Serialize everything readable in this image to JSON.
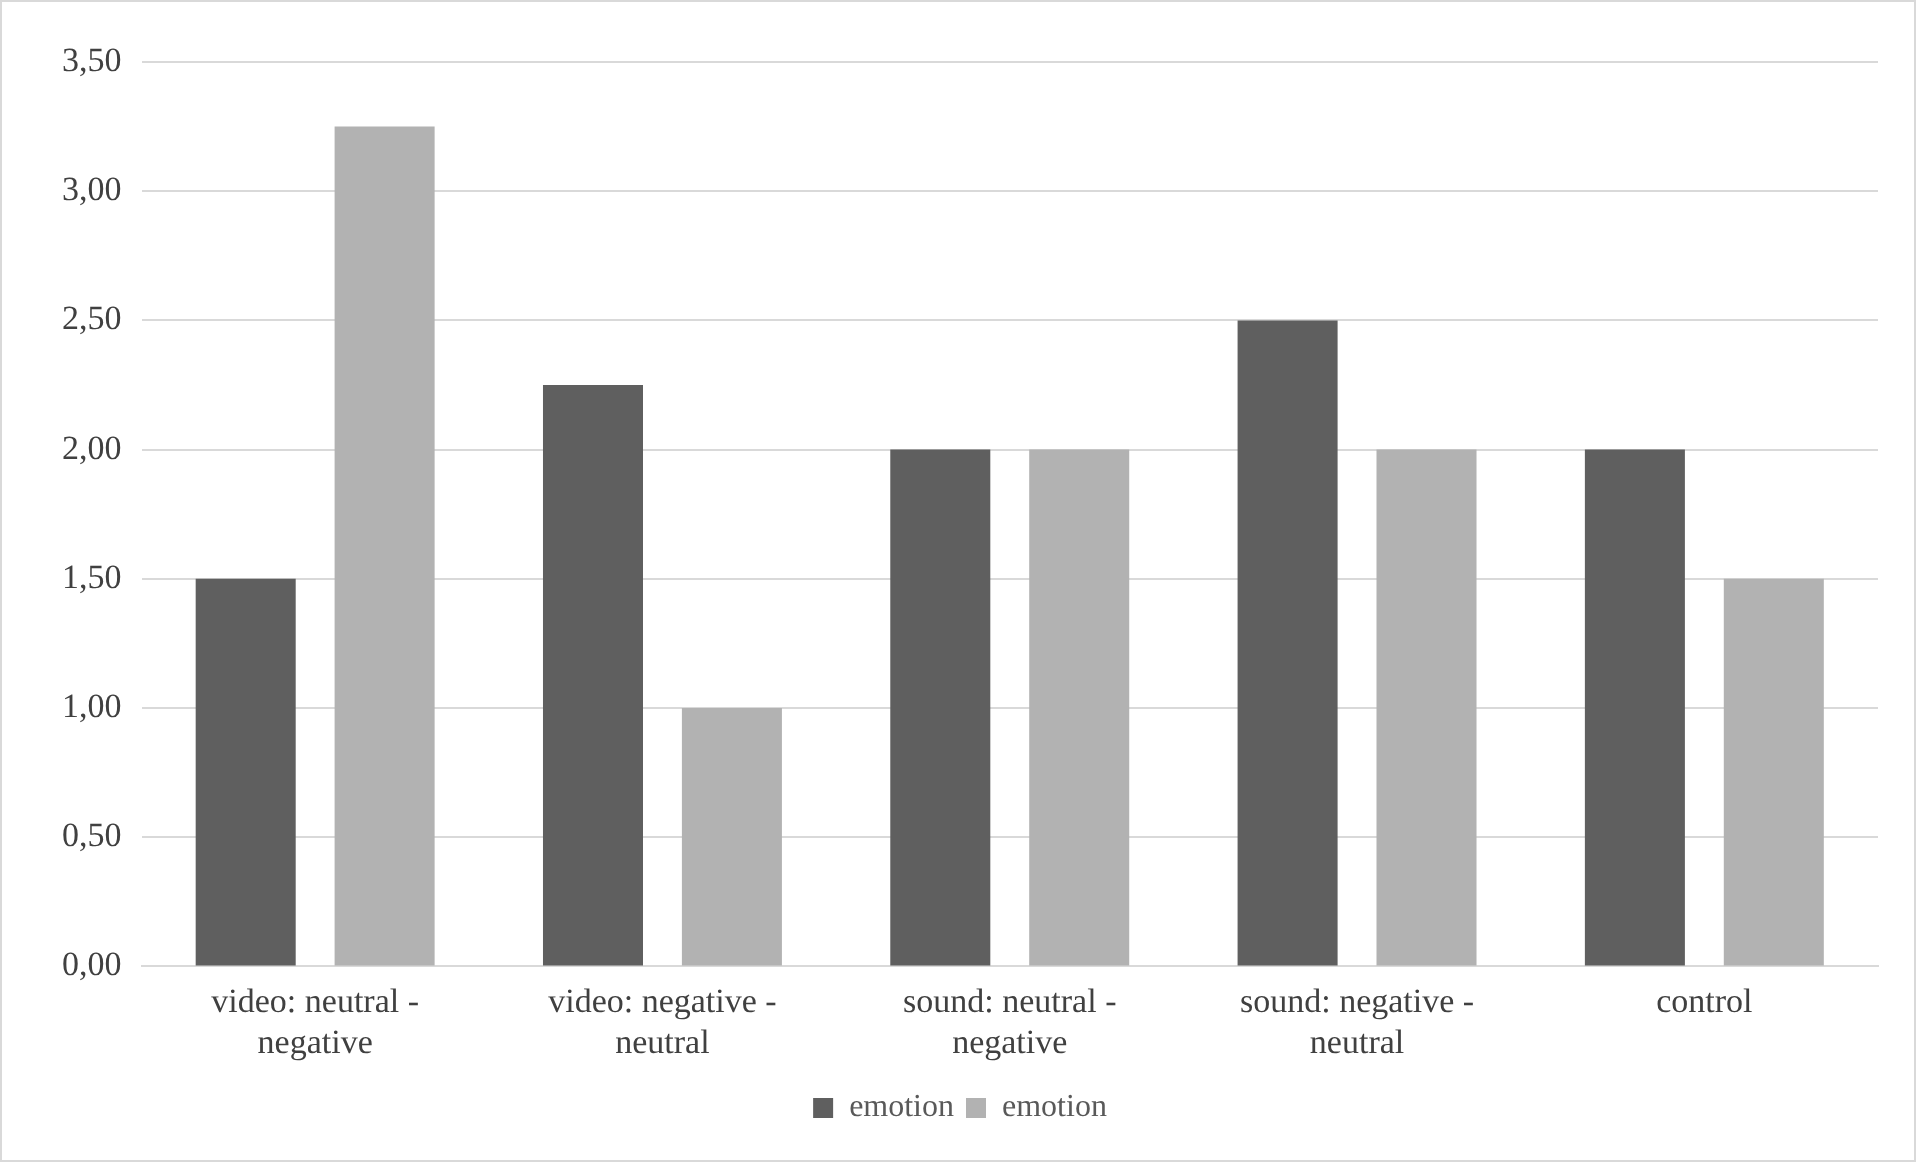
{
  "chart_data": {
    "type": "bar",
    "categories": [
      "video: neutral - negative",
      "video: negative - neutral",
      "sound: neutral - negative",
      "sound: negative - neutral",
      "control"
    ],
    "series": [
      {
        "name": "emotion",
        "color": "#5f5f5f",
        "values": [
          1.5,
          2.25,
          2.0,
          2.5,
          2.0
        ]
      },
      {
        "name": "emotion",
        "color": "#b2b2b2",
        "values": [
          3.25,
          1.0,
          2.0,
          2.0,
          1.5
        ]
      }
    ],
    "ylim": [
      0,
      3.5
    ],
    "yticks": [
      {
        "value": 0,
        "label": "0,00"
      },
      {
        "value": 0.5,
        "label": "0,50"
      },
      {
        "value": 1,
        "label": "1,00"
      },
      {
        "value": 1.5,
        "label": "1,50"
      },
      {
        "value": 2,
        "label": "2,00"
      },
      {
        "value": 2.5,
        "label": "2,50"
      },
      {
        "value": 3,
        "label": "3,00"
      },
      {
        "value": 3.5,
        "label": "3,50"
      }
    ],
    "grid": "y",
    "legend": "bottom"
  }
}
